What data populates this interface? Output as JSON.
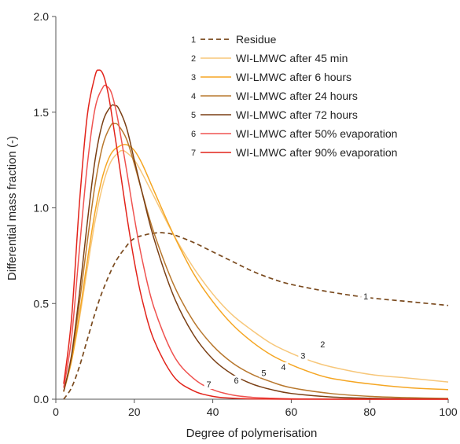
{
  "chart_data": {
    "type": "line",
    "title": "",
    "xlabel": "Degree of polymerisation",
    "ylabel": "Differential mass fraction (-)",
    "xlim": [
      0,
      100
    ],
    "ylim": [
      0,
      2.0
    ],
    "xticks": [
      0,
      20,
      40,
      60,
      80,
      100
    ],
    "yticks": [
      0.0,
      0.5,
      1.0,
      1.5,
      2.0
    ],
    "xtick_labels": [
      "0",
      "20",
      "40",
      "60",
      "80",
      "100"
    ],
    "ytick_labels": [
      "0.0",
      "0.5",
      "1.0",
      "1.5",
      "2.0"
    ],
    "grid": false,
    "legend_position": "top-right",
    "series": [
      {
        "label": "1",
        "name": "Residue",
        "color": "#7a4a1e",
        "dash": "dashed",
        "x": [
          2,
          4,
          6,
          8,
          10,
          12,
          15,
          18,
          20,
          23,
          26,
          28,
          30,
          35,
          40,
          45,
          50,
          55,
          60,
          70,
          80,
          90,
          100
        ],
        "y": [
          0.0,
          0.06,
          0.17,
          0.31,
          0.45,
          0.57,
          0.71,
          0.8,
          0.84,
          0.86,
          0.87,
          0.868,
          0.86,
          0.82,
          0.77,
          0.72,
          0.67,
          0.63,
          0.6,
          0.56,
          0.53,
          0.51,
          0.49
        ],
        "label_at": [
          79,
          0.53
        ]
      },
      {
        "label": "2",
        "name": "WI-LMWC after 45 min",
        "color": "#f7c77a",
        "dash": "solid",
        "x": [
          2,
          4,
          6,
          8,
          10,
          12,
          14,
          16,
          17,
          18,
          20,
          22,
          25,
          30,
          35,
          40,
          45,
          50,
          55,
          60,
          65,
          70,
          80,
          90,
          100
        ],
        "y": [
          0.04,
          0.2,
          0.42,
          0.68,
          0.93,
          1.12,
          1.24,
          1.29,
          1.3,
          1.29,
          1.25,
          1.18,
          1.06,
          0.86,
          0.69,
          0.55,
          0.44,
          0.36,
          0.29,
          0.24,
          0.2,
          0.17,
          0.13,
          0.11,
          0.09
        ],
        "label_at": [
          68,
          0.28
        ]
      },
      {
        "label": "3",
        "name": "WI-LMWC after 6 hours",
        "color": "#f5a623",
        "dash": "solid",
        "x": [
          2,
          4,
          6,
          8,
          10,
          12,
          14,
          16,
          18,
          20,
          22,
          25,
          30,
          35,
          40,
          45,
          50,
          55,
          60,
          65,
          70,
          80,
          90,
          100
        ],
        "y": [
          0.04,
          0.2,
          0.44,
          0.72,
          0.98,
          1.17,
          1.28,
          1.32,
          1.33,
          1.3,
          1.23,
          1.09,
          0.86,
          0.66,
          0.51,
          0.39,
          0.3,
          0.23,
          0.18,
          0.14,
          0.11,
          0.08,
          0.06,
          0.05
        ],
        "label_at": [
          63,
          0.22
        ]
      },
      {
        "label": "4",
        "name": "WI-LMWC after 24 hours",
        "color": "#b8782e",
        "dash": "solid",
        "x": [
          2,
          4,
          6,
          8,
          10,
          12,
          14,
          15,
          16,
          18,
          20,
          22,
          25,
          30,
          35,
          40,
          45,
          50,
          55,
          60,
          70,
          80,
          90,
          100
        ],
        "y": [
          0.04,
          0.22,
          0.5,
          0.82,
          1.12,
          1.33,
          1.43,
          1.44,
          1.43,
          1.36,
          1.23,
          1.08,
          0.87,
          0.6,
          0.41,
          0.28,
          0.19,
          0.13,
          0.09,
          0.06,
          0.03,
          0.015,
          0.008,
          0.004
        ],
        "label_at": [
          58,
          0.16
        ]
      },
      {
        "label": "5",
        "name": "WI-LMWC after 72 hours",
        "color": "#7a3f14",
        "dash": "solid",
        "x": [
          2,
          4,
          6,
          8,
          10,
          12,
          14,
          15,
          16,
          18,
          20,
          22,
          25,
          30,
          35,
          40,
          45,
          50,
          55,
          60,
          70,
          80,
          90,
          100
        ],
        "y": [
          0.04,
          0.23,
          0.55,
          0.92,
          1.25,
          1.45,
          1.53,
          1.535,
          1.52,
          1.42,
          1.25,
          1.08,
          0.84,
          0.54,
          0.34,
          0.21,
          0.13,
          0.08,
          0.05,
          0.03,
          0.012,
          0.005,
          0.002,
          0.001
        ],
        "label_at": [
          53,
          0.13
        ]
      },
      {
        "label": "6",
        "name": "WI-LMWC after 50% evaporation",
        "color": "#ef5350",
        "dash": "solid",
        "x": [
          2,
          4,
          6,
          8,
          10,
          12,
          13,
          14,
          15,
          16,
          18,
          20,
          22,
          25,
          30,
          35,
          40,
          45,
          50,
          55,
          60,
          70,
          80,
          100
        ],
        "y": [
          0.06,
          0.32,
          0.78,
          1.22,
          1.52,
          1.63,
          1.635,
          1.61,
          1.54,
          1.44,
          1.2,
          0.95,
          0.73,
          0.48,
          0.23,
          0.11,
          0.05,
          0.022,
          0.01,
          0.005,
          0.002,
          0.0005,
          0.0001,
          0.0
        ],
        "label_at": [
          46,
          0.09
        ]
      },
      {
        "label": "7",
        "name": "WI-LMWC after 90% evaporation",
        "color": "#e2231a",
        "dash": "solid",
        "x": [
          2,
          4,
          6,
          8,
          10,
          11,
          12,
          13,
          14,
          16,
          18,
          20,
          22,
          25,
          30,
          35,
          40,
          45,
          50,
          60,
          80,
          100
        ],
        "y": [
          0.08,
          0.42,
          1.02,
          1.48,
          1.69,
          1.72,
          1.7,
          1.63,
          1.52,
          1.25,
          0.97,
          0.72,
          0.52,
          0.31,
          0.12,
          0.045,
          0.015,
          0.005,
          0.0015,
          0.0002,
          0.0,
          0.0
        ],
        "label_at": [
          39,
          0.07
        ]
      }
    ]
  }
}
